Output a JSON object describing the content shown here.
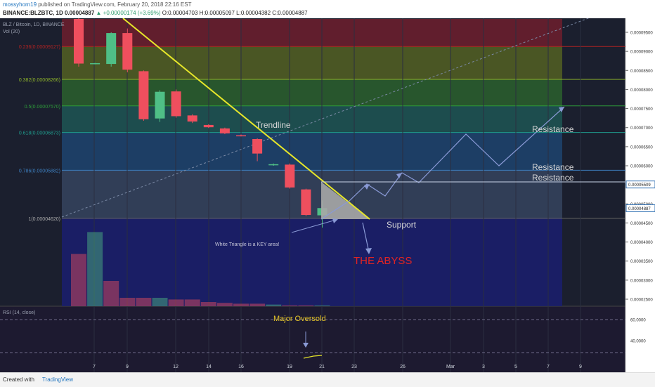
{
  "header": {
    "author": "mossyhorn19",
    "published": "published on TradingView.com, February 20, 2018 22:16 EST",
    "symbol_line": "BINANCE:BLZBTC, 1D 0.00004887",
    "change": "▲ +0.00000174 (+3.69%)",
    "ohlc": "O:0.00004703 H:0.00005097 L:0.00004382 C:0.00004887"
  },
  "footer": {
    "created_with": "Created with",
    "brand": "TradingView"
  },
  "chart_data": {
    "type": "candlestick",
    "title": "BLZ / Bitcoin, 1D, BINANCE",
    "volume_label": "Vol (20)",
    "rsi_label": "RSI (14, close)",
    "x_ticks": [
      "7",
      "9",
      "12",
      "14",
      "16",
      "19",
      "21",
      "23",
      "26",
      "Mar",
      "3",
      "5",
      "7",
      "9"
    ],
    "y_ticks": [
      "0.00009500",
      "0.00009000",
      "0.00008500",
      "0.00008000",
      "0.00007500",
      "0.00007000",
      "0.00006500",
      "0.00006000",
      "0.00005500",
      "0.00005000",
      "0.00004500",
      "0.00004000",
      "0.00003500",
      "0.00003000",
      "0.00002500"
    ],
    "rsi_ticks": [
      "60.0000",
      "40.0000"
    ],
    "y_range": [
      2.3e-05,
      9.85e-05
    ],
    "candles": [
      {
        "o": 9.85e-05,
        "h": 9.9e-05,
        "l": 8.6e-05,
        "c": 8.68e-05
      },
      {
        "o": 8.68e-05,
        "h": 8.7e-05,
        "l": 8.66e-05,
        "c": 8.69e-05
      },
      {
        "o": 8.67e-05,
        "h": 9.5e-05,
        "l": 8.6e-05,
        "c": 9.48e-05
      },
      {
        "o": 9.48e-05,
        "h": 9.6e-05,
        "l": 8.45e-05,
        "c": 8.52e-05
      },
      {
        "o": 8.48e-05,
        "h": 8.5e-05,
        "l": 7.18e-05,
        "c": 7.22e-05
      },
      {
        "o": 7.24e-05,
        "h": 7.98e-05,
        "l": 7.15e-05,
        "c": 7.94e-05
      },
      {
        "o": 7.95e-05,
        "h": 8e-05,
        "l": 7.26e-05,
        "c": 7.3e-05
      },
      {
        "o": 7.32e-05,
        "h": 7.35e-05,
        "l": 7.12e-05,
        "c": 7.16e-05
      },
      {
        "o": 7.07e-05,
        "h": 7.09e-05,
        "l": 6.99e-05,
        "c": 7.01e-05
      },
      {
        "o": 6.98e-05,
        "h": 7e-05,
        "l": 6.83e-05,
        "c": 6.85e-05
      },
      {
        "o": 6.8e-05,
        "h": 6.82e-05,
        "l": 6.77e-05,
        "c": 6.78e-05
      },
      {
        "o": 6.7e-05,
        "h": 6.72e-05,
        "l": 6.12e-05,
        "c": 6.32e-05
      },
      {
        "o": 6.02e-05,
        "h": 6.06e-05,
        "l": 6e-05,
        "c": 6.04e-05
      },
      {
        "o": 6.03e-05,
        "h": 6.06e-05,
        "l": 5.4e-05,
        "c": 5.43e-05
      },
      {
        "o": 5.38e-05,
        "h": 5.4e-05,
        "l": 4.68e-05,
        "c": 4.71e-05
      },
      {
        "o": 4.7e-05,
        "h": 5.09e-05,
        "l": 4.38e-05,
        "c": 4.89e-05
      }
    ],
    "volume": [
      0.62,
      0.88,
      0.3,
      0.1,
      0.1,
      0.1,
      0.08,
      0.08,
      0.05,
      0.04,
      0.03,
      0.03,
      0.02,
      0.01,
      0.01,
      0.01
    ],
    "fibonacci": [
      {
        "label": "0.236(0.00009127)",
        "value": 9.127e-05,
        "color": "#b22222"
      },
      {
        "label": "0.382(0.00008266)",
        "value": 8.266e-05,
        "color": "#8db32a"
      },
      {
        "label": "0.5(0.00007570)",
        "value": 7.57e-05,
        "color": "#2e9e3a"
      },
      {
        "label": "0.618(0.00006873)",
        "value": 6.873e-05,
        "color": "#1f9a8c"
      },
      {
        "label": "0.786(0.00005882)",
        "value": 5.882e-05,
        "color": "#3d7fbf"
      },
      {
        "label": "1(0.00004620)",
        "value": 4.62e-05,
        "color": "#666666"
      }
    ],
    "price_tags": [
      {
        "label": "0.00005509",
        "value": 5.509e-05
      },
      {
        "label": "0.00004887",
        "value": 4.887e-05
      }
    ],
    "annotations": {
      "trendline": "Trendline",
      "resistance_1": "Resistance",
      "resistance_2": "Resistance",
      "resistance_3": "Resistance",
      "support": "Support",
      "triangle_note": "White Triangle is a KEY area!",
      "abyss": "THE ABYSS",
      "oversold": "Major Oversold"
    }
  }
}
